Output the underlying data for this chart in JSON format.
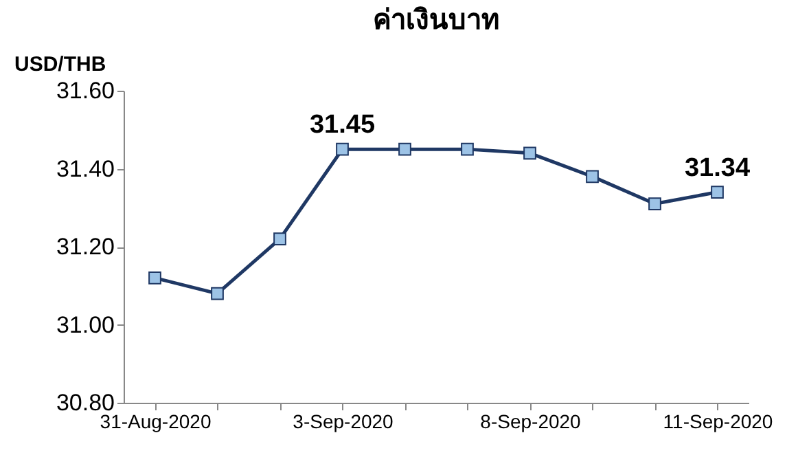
{
  "chart_data": {
    "type": "line",
    "title": "ค่าเงินบาท",
    "ylabel": "USD/THB",
    "categories": [
      "31-Aug-2020",
      null,
      null,
      "3-Sep-2020",
      null,
      null,
      "8-Sep-2020",
      null,
      null,
      "11-Sep-2020"
    ],
    "series": [
      {
        "color": "#1f3864",
        "values": [
          31.12,
          31.08,
          31.22,
          31.45,
          31.45,
          31.45,
          31.44,
          31.38,
          31.31,
          31.34
        ],
        "value_labels": [
          null,
          null,
          null,
          "31.45",
          null,
          null,
          null,
          null,
          null,
          "31.34"
        ]
      }
    ],
    "ylim": [
      30.8,
      31.6
    ],
    "yticks": [
      {
        "value": 30.8,
        "label": "30.80"
      },
      {
        "value": 31.0,
        "label": "31.00"
      },
      {
        "value": 31.2,
        "label": "31.20"
      },
      {
        "value": 31.4,
        "label": "31.40"
      },
      {
        "value": 31.6,
        "label": "31.60"
      }
    ],
    "marker": "square",
    "line_style": "solid"
  }
}
